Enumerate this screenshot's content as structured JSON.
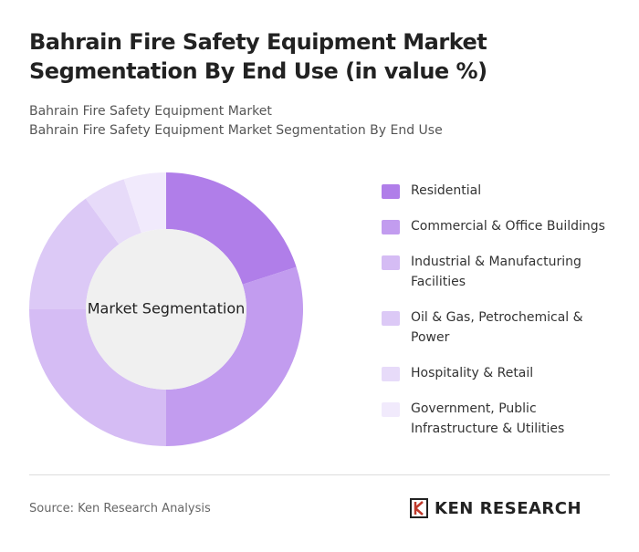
{
  "chart_data": {
    "type": "donut",
    "title": "Bahrain Fire Safety Equipment Market Segmentation By End Use (in value %)",
    "subtitle": [
      "Bahrain Fire Safety Equipment Market",
      "Bahrain Fire Safety Equipment Market Segmentation By End Use"
    ],
    "center_label": "Market Segmentation",
    "categories": [
      "Residential",
      "Commercial & Office Buildings",
      "Industrial & Manufacturing Facilities",
      "Oil & Gas, Petrochemical & Power",
      "Hospitality & Retail",
      "Government, Public Infrastructure & Utilities"
    ],
    "values": [
      20,
      30,
      25,
      15,
      5,
      5
    ],
    "colors": [
      "#b07ee9",
      "#c29cef",
      "#d5bcf4",
      "#dcc9f6",
      "#e7dbf9",
      "#f1eafc"
    ],
    "source": "Source: Ken Research Analysis",
    "brand": "KEN RESEARCH"
  }
}
